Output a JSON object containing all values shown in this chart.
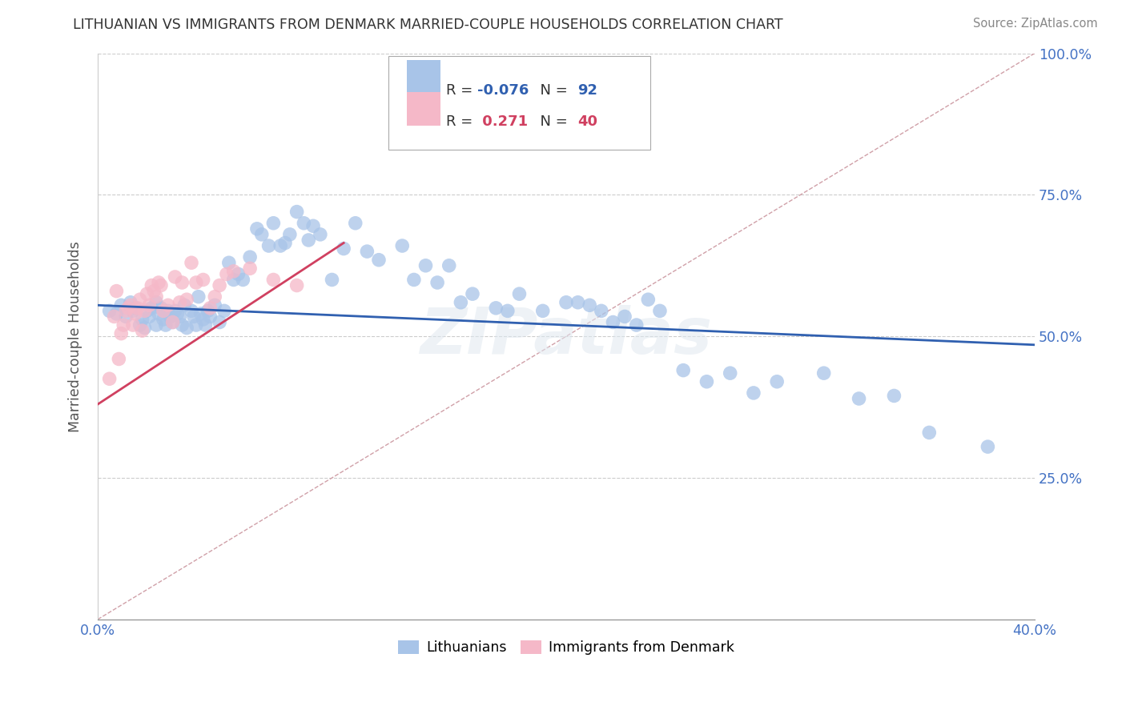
{
  "title": "LITHUANIAN VS IMMIGRANTS FROM DENMARK MARRIED-COUPLE HOUSEHOLDS CORRELATION CHART",
  "source": "Source: ZipAtlas.com",
  "ylabel": "Married-couple Households",
  "xlim": [
    0.0,
    0.4
  ],
  "ylim": [
    0.0,
    1.0
  ],
  "blue_color": "#a8c4e8",
  "pink_color": "#f5b8c8",
  "blue_trend_color": "#3060b0",
  "pink_trend_color": "#d04060",
  "diag_color": "#d0a0a8",
  "background_color": "#ffffff",
  "blue_trend_x0": 0.0,
  "blue_trend_y0": 0.555,
  "blue_trend_x1": 0.4,
  "blue_trend_y1": 0.485,
  "pink_trend_x0": 0.0,
  "pink_trend_y0": 0.38,
  "pink_trend_x1": 0.105,
  "pink_trend_y1": 0.665,
  "blue_x": [
    0.005,
    0.008,
    0.01,
    0.012,
    0.014,
    0.015,
    0.016,
    0.018,
    0.019,
    0.02,
    0.021,
    0.022,
    0.023,
    0.025,
    0.025,
    0.026,
    0.027,
    0.028,
    0.029,
    0.03,
    0.031,
    0.032,
    0.033,
    0.034,
    0.035,
    0.036,
    0.037,
    0.038,
    0.04,
    0.041,
    0.042,
    0.043,
    0.044,
    0.045,
    0.046,
    0.047,
    0.048,
    0.05,
    0.052,
    0.054,
    0.056,
    0.058,
    0.06,
    0.062,
    0.065,
    0.068,
    0.07,
    0.073,
    0.075,
    0.078,
    0.08,
    0.082,
    0.085,
    0.088,
    0.09,
    0.092,
    0.095,
    0.1,
    0.105,
    0.11,
    0.115,
    0.12,
    0.13,
    0.135,
    0.14,
    0.145,
    0.15,
    0.155,
    0.16,
    0.17,
    0.175,
    0.18,
    0.19,
    0.2,
    0.205,
    0.21,
    0.215,
    0.22,
    0.225,
    0.23,
    0.235,
    0.24,
    0.25,
    0.26,
    0.27,
    0.28,
    0.29,
    0.31,
    0.325,
    0.34,
    0.355,
    0.38
  ],
  "blue_y": [
    0.545,
    0.54,
    0.555,
    0.535,
    0.56,
    0.545,
    0.55,
    0.52,
    0.53,
    0.515,
    0.545,
    0.535,
    0.55,
    0.52,
    0.56,
    0.54,
    0.55,
    0.53,
    0.52,
    0.545,
    0.535,
    0.525,
    0.545,
    0.54,
    0.535,
    0.52,
    0.555,
    0.515,
    0.545,
    0.535,
    0.52,
    0.57,
    0.54,
    0.53,
    0.52,
    0.545,
    0.535,
    0.555,
    0.525,
    0.545,
    0.63,
    0.6,
    0.61,
    0.6,
    0.64,
    0.69,
    0.68,
    0.66,
    0.7,
    0.66,
    0.665,
    0.68,
    0.72,
    0.7,
    0.67,
    0.695,
    0.68,
    0.6,
    0.655,
    0.7,
    0.65,
    0.635,
    0.66,
    0.6,
    0.625,
    0.595,
    0.625,
    0.56,
    0.575,
    0.55,
    0.545,
    0.575,
    0.545,
    0.56,
    0.56,
    0.555,
    0.545,
    0.525,
    0.535,
    0.52,
    0.565,
    0.545,
    0.44,
    0.42,
    0.435,
    0.4,
    0.42,
    0.435,
    0.39,
    0.395,
    0.33,
    0.305
  ],
  "pink_x": [
    0.005,
    0.007,
    0.008,
    0.009,
    0.01,
    0.011,
    0.012,
    0.013,
    0.014,
    0.015,
    0.016,
    0.017,
    0.018,
    0.019,
    0.02,
    0.021,
    0.022,
    0.023,
    0.024,
    0.025,
    0.026,
    0.027,
    0.028,
    0.03,
    0.032,
    0.033,
    0.035,
    0.036,
    0.038,
    0.04,
    0.042,
    0.045,
    0.048,
    0.05,
    0.052,
    0.055,
    0.058,
    0.065,
    0.075,
    0.085
  ],
  "pink_y": [
    0.425,
    0.535,
    0.58,
    0.46,
    0.505,
    0.52,
    0.545,
    0.55,
    0.555,
    0.52,
    0.54,
    0.55,
    0.565,
    0.51,
    0.545,
    0.575,
    0.555,
    0.59,
    0.58,
    0.57,
    0.595,
    0.59,
    0.545,
    0.555,
    0.525,
    0.605,
    0.56,
    0.595,
    0.565,
    0.63,
    0.595,
    0.6,
    0.55,
    0.57,
    0.59,
    0.61,
    0.615,
    0.62,
    0.6,
    0.59
  ]
}
